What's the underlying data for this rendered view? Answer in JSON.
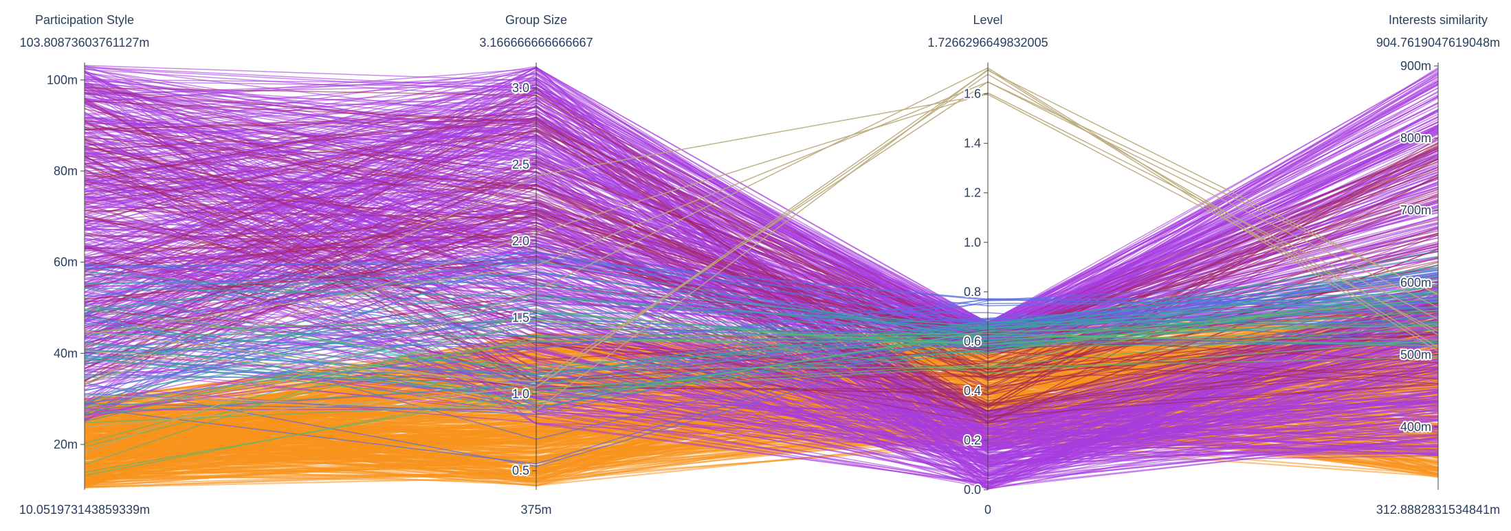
{
  "chart_data": {
    "type": "parallel_coordinates",
    "title": "",
    "colors": {
      "purple": "#a63cdf",
      "orange": "#f7931e",
      "khaki": "#b9a97a",
      "blue": "#5b6de0",
      "teal": "#3aa6a0",
      "maroon": "#a4275a",
      "green": "#63b56b",
      "axis": "#444444",
      "text": "#2a3f5f"
    },
    "dimensions": [
      {
        "label": "Participation Style",
        "range_max_label": "103.80873603761127m",
        "range_min_label": "10.051973143859339m",
        "range": [
          0.010051973143859338,
          0.10380873603761127
        ],
        "ticks": [
          {
            "value": 0.02,
            "label": "20m"
          },
          {
            "value": 0.04,
            "label": "40m"
          },
          {
            "value": 0.06,
            "label": "60m"
          },
          {
            "value": 0.08,
            "label": "80m"
          },
          {
            "value": 0.1,
            "label": "100m"
          }
        ],
        "tick_side": "left"
      },
      {
        "label": "Group Size",
        "range_max_label": "3.166666666666667",
        "range_min_label": "375m",
        "range": [
          0.375,
          3.166666666666667
        ],
        "ticks": [
          {
            "value": 0.5,
            "label": "0.5"
          },
          {
            "value": 1.0,
            "label": "1.0"
          },
          {
            "value": 1.5,
            "label": "1.5"
          },
          {
            "value": 2.0,
            "label": "2.0"
          },
          {
            "value": 2.5,
            "label": "2.5"
          },
          {
            "value": 3.0,
            "label": "3.0"
          }
        ],
        "tick_side": "left"
      },
      {
        "label": "Level",
        "range_max_label": "1.7266296649832005",
        "range_min_label": "0",
        "range": [
          0,
          1.7266296649832005
        ],
        "ticks": [
          {
            "value": 0.0,
            "label": "0.0"
          },
          {
            "value": 0.2,
            "label": "0.2"
          },
          {
            "value": 0.4,
            "label": "0.4"
          },
          {
            "value": 0.6,
            "label": "0.6"
          },
          {
            "value": 0.8,
            "label": "0.8"
          },
          {
            "value": 1.0,
            "label": "1.0"
          },
          {
            "value": 1.2,
            "label": "1.2"
          },
          {
            "value": 1.4,
            "label": "1.4"
          },
          {
            "value": 1.6,
            "label": "1.6"
          }
        ],
        "tick_side": "left"
      },
      {
        "label": "Interests similarity",
        "range_max_label": "904.7619047619048m",
        "range_min_label": "312.8882831534841m",
        "range": [
          0.3128882831534841,
          0.9047619047619048
        ],
        "ticks": [
          {
            "value": 0.4,
            "label": "400m"
          },
          {
            "value": 0.5,
            "label": "500m"
          },
          {
            "value": 0.6,
            "label": "600m"
          },
          {
            "value": 0.7,
            "label": "700m"
          },
          {
            "value": 0.8,
            "label": "800m"
          },
          {
            "value": 0.9,
            "label": "900m"
          }
        ],
        "tick_side": "left"
      }
    ],
    "line_groups": [
      {
        "color_key": "orange",
        "count": 420,
        "opacity": 0.55,
        "bands": [
          [
            0.0105,
            0.03
          ],
          [
            0.4,
            1.4
          ],
          [
            0.18,
            0.67
          ],
          [
            0.33,
            0.58
          ]
        ]
      },
      {
        "color_key": "purple",
        "count": 260,
        "opacity": 0.6,
        "bands": [
          [
            0.025,
            0.1035
          ],
          [
            0.8,
            3.16
          ],
          [
            0.0,
            0.32
          ],
          [
            0.36,
            0.6
          ]
        ]
      },
      {
        "color_key": "purple",
        "count": 220,
        "opacity": 0.6,
        "bands": [
          [
            0.04,
            0.1035
          ],
          [
            1.6,
            3.16
          ],
          [
            0.55,
            0.68
          ],
          [
            0.56,
            0.9
          ]
        ]
      },
      {
        "color_key": "maroon",
        "count": 80,
        "opacity": 0.6,
        "bands": [
          [
            0.03,
            0.1
          ],
          [
            1.0,
            3.0
          ],
          [
            0.25,
            0.65
          ],
          [
            0.45,
            0.8
          ]
        ]
      },
      {
        "color_key": "blue",
        "count": 30,
        "opacity": 0.75,
        "bands": [
          [
            0.025,
            0.06
          ],
          [
            0.5,
            2.0
          ],
          [
            0.58,
            0.78
          ],
          [
            0.5,
            0.62
          ]
        ]
      },
      {
        "color_key": "teal",
        "count": 25,
        "opacity": 0.75,
        "bands": [
          [
            0.025,
            0.058
          ],
          [
            0.9,
            2.0
          ],
          [
            0.55,
            0.68
          ],
          [
            0.5,
            0.65
          ]
        ]
      },
      {
        "color_key": "green",
        "count": 10,
        "opacity": 0.75,
        "bands": [
          [
            0.012,
            0.05
          ],
          [
            0.8,
            1.6
          ],
          [
            0.45,
            0.65
          ],
          [
            0.48,
            0.6
          ]
        ]
      },
      {
        "color_key": "khaki",
        "count": 8,
        "opacity": 0.9,
        "bands": [
          [
            0.012,
            0.045
          ],
          [
            0.45,
            2.6
          ],
          [
            1.55,
            1.72
          ],
          [
            0.5,
            0.62
          ]
        ]
      }
    ]
  }
}
